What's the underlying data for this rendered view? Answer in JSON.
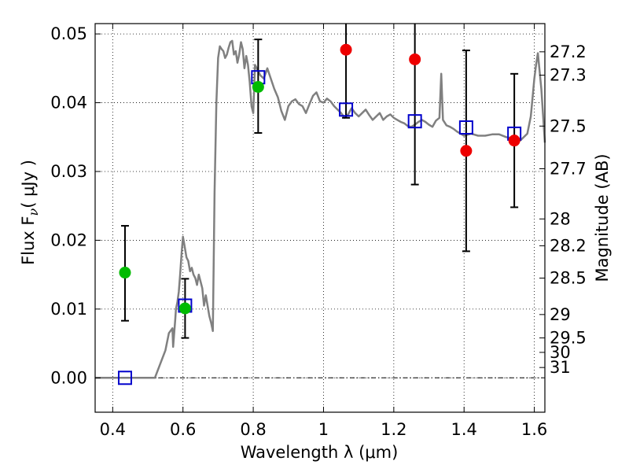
{
  "chart_data": {
    "type": "line",
    "xlabel": "Wavelength  λ (μm)",
    "ylabel": "Flux  F",
    "ylabel_subscript": "ν",
    "ylabel_unit": "( μJy )",
    "y2label": "Magnitude (AB)",
    "xlim": [
      0.35,
      1.63
    ],
    "ylim": [
      -0.005,
      0.0515
    ],
    "grid": true,
    "x_ticks": [
      0.4,
      0.6,
      0.8,
      1.0,
      1.2,
      1.4,
      1.6
    ],
    "x_tick_labels": [
      "0.4",
      "0.6",
      "0.8",
      "1",
      "1.2",
      "1.4",
      "1.6"
    ],
    "y_ticks": [
      0.0,
      0.01,
      0.02,
      0.03,
      0.04,
      0.05
    ],
    "y_tick_labels": [
      "0.00",
      "0.01",
      "0.02",
      "0.03",
      "0.04",
      "0.05"
    ],
    "mag_ticks": [
      {
        "label": "27.2",
        "flux": 0.0474
      },
      {
        "label": "27.3",
        "flux": 0.044
      },
      {
        "label": "27.5",
        "flux": 0.0366
      },
      {
        "label": "27.7",
        "flux": 0.0304
      },
      {
        "label": "28",
        "flux": 0.0231
      },
      {
        "label": "28.2",
        "flux": 0.0192
      },
      {
        "label": "28.5",
        "flux": 0.0145
      },
      {
        "label": "29",
        "flux": 0.0092
      },
      {
        "label": "29.5",
        "flux": 0.0058
      },
      {
        "label": "30",
        "flux": 0.0037
      },
      {
        "label": "31",
        "flux": 0.0015
      }
    ],
    "colors": {
      "model": "#808080",
      "model_bands": "#0000cc",
      "detections": "#00bb00",
      "upper_limits": "#ee0000",
      "errorbars": "#000000",
      "zero_line": "#000000"
    },
    "model_spectrum": {
      "x": [
        0.35,
        0.52,
        0.535,
        0.55,
        0.56,
        0.57,
        0.572,
        0.578,
        0.58,
        0.584,
        0.588,
        0.592,
        0.596,
        0.6,
        0.605,
        0.61,
        0.615,
        0.62,
        0.625,
        0.63,
        0.635,
        0.64,
        0.645,
        0.65,
        0.655,
        0.66,
        0.665,
        0.67,
        0.675,
        0.68,
        0.685,
        0.69,
        0.695,
        0.7,
        0.705,
        0.71,
        0.715,
        0.72,
        0.725,
        0.73,
        0.735,
        0.74,
        0.745,
        0.75,
        0.755,
        0.76,
        0.765,
        0.77,
        0.775,
        0.78,
        0.785,
        0.79,
        0.795,
        0.8,
        0.805,
        0.81,
        0.815,
        0.82,
        0.83,
        0.84,
        0.85,
        0.86,
        0.87,
        0.88,
        0.89,
        0.9,
        0.91,
        0.92,
        0.93,
        0.94,
        0.95,
        0.96,
        0.97,
        0.98,
        0.99,
        1.0,
        1.01,
        1.02,
        1.03,
        1.04,
        1.05,
        1.06,
        1.07,
        1.08,
        1.09,
        1.1,
        1.11,
        1.12,
        1.13,
        1.14,
        1.15,
        1.16,
        1.17,
        1.18,
        1.19,
        1.2,
        1.21,
        1.22,
        1.23,
        1.24,
        1.25,
        1.26,
        1.27,
        1.28,
        1.29,
        1.3,
        1.31,
        1.32,
        1.33,
        1.335,
        1.34,
        1.35,
        1.36,
        1.37,
        1.38,
        1.39,
        1.4,
        1.42,
        1.44,
        1.46,
        1.48,
        1.5,
        1.52,
        1.54,
        1.56,
        1.58,
        1.59,
        1.6,
        1.605,
        1.61,
        1.62,
        1.63
      ],
      "y": [
        0.0,
        0.0,
        0.002,
        0.004,
        0.0065,
        0.0072,
        0.0045,
        0.0085,
        0.01,
        0.011,
        0.0125,
        0.015,
        0.018,
        0.0205,
        0.019,
        0.0175,
        0.017,
        0.0155,
        0.016,
        0.015,
        0.0145,
        0.0135,
        0.015,
        0.014,
        0.013,
        0.0105,
        0.012,
        0.0105,
        0.009,
        0.008,
        0.0068,
        0.027,
        0.04,
        0.0465,
        0.0482,
        0.0478,
        0.0475,
        0.0465,
        0.047,
        0.048,
        0.0488,
        0.049,
        0.047,
        0.0475,
        0.0458,
        0.047,
        0.0488,
        0.0478,
        0.045,
        0.0468,
        0.0455,
        0.043,
        0.0395,
        0.0385,
        0.0455,
        0.045,
        0.0445,
        0.044,
        0.0435,
        0.045,
        0.0435,
        0.042,
        0.0408,
        0.0388,
        0.0375,
        0.0395,
        0.0402,
        0.0405,
        0.0398,
        0.0395,
        0.0385,
        0.0398,
        0.041,
        0.0415,
        0.0402,
        0.04,
        0.0406,
        0.0402,
        0.0395,
        0.039,
        0.0385,
        0.0378,
        0.0383,
        0.0392,
        0.0385,
        0.038,
        0.0385,
        0.039,
        0.0382,
        0.0375,
        0.038,
        0.0385,
        0.0375,
        0.038,
        0.0383,
        0.0378,
        0.0375,
        0.0372,
        0.037,
        0.0366,
        0.0365,
        0.0368,
        0.0372,
        0.0375,
        0.0372,
        0.0368,
        0.0365,
        0.0374,
        0.0378,
        0.0442,
        0.0375,
        0.0367,
        0.0365,
        0.0362,
        0.0358,
        0.0355,
        0.0352,
        0.0355,
        0.0352,
        0.0352,
        0.0354,
        0.0354,
        0.035,
        0.0348,
        0.0345,
        0.0355,
        0.038,
        0.0435,
        0.0455,
        0.0472,
        0.042,
        0.0342
      ]
    },
    "model_band_fluxes": [
      {
        "x": 0.435,
        "y": 0.0
      },
      {
        "x": 0.606,
        "y": 0.0105
      },
      {
        "x": 0.814,
        "y": 0.0437
      },
      {
        "x": 1.064,
        "y": 0.039
      },
      {
        "x": 1.26,
        "y": 0.0373
      },
      {
        "x": 1.406,
        "y": 0.0364
      },
      {
        "x": 1.543,
        "y": 0.0355
      }
    ],
    "detections": [
      {
        "x": 0.435,
        "y": 0.0153,
        "err_low": 0.0083,
        "err_high": 0.0221
      },
      {
        "x": 0.606,
        "y": 0.0101,
        "err_low": 0.0058,
        "err_high": 0.0144
      },
      {
        "x": 0.814,
        "y": 0.0423,
        "err_low": 0.0356,
        "err_high": 0.0492
      }
    ],
    "upper_limits": [
      {
        "x": 1.064,
        "y": 0.0477,
        "err_low": 0.0378,
        "err_high": 0.0515
      },
      {
        "x": 1.26,
        "y": 0.0463,
        "err_low": 0.0281,
        "err_high": 0.0515
      },
      {
        "x": 1.406,
        "y": 0.033,
        "err_low": 0.0184,
        "err_high": 0.0476
      },
      {
        "x": 1.543,
        "y": 0.0345,
        "err_low": 0.0248,
        "err_high": 0.0442
      }
    ]
  }
}
